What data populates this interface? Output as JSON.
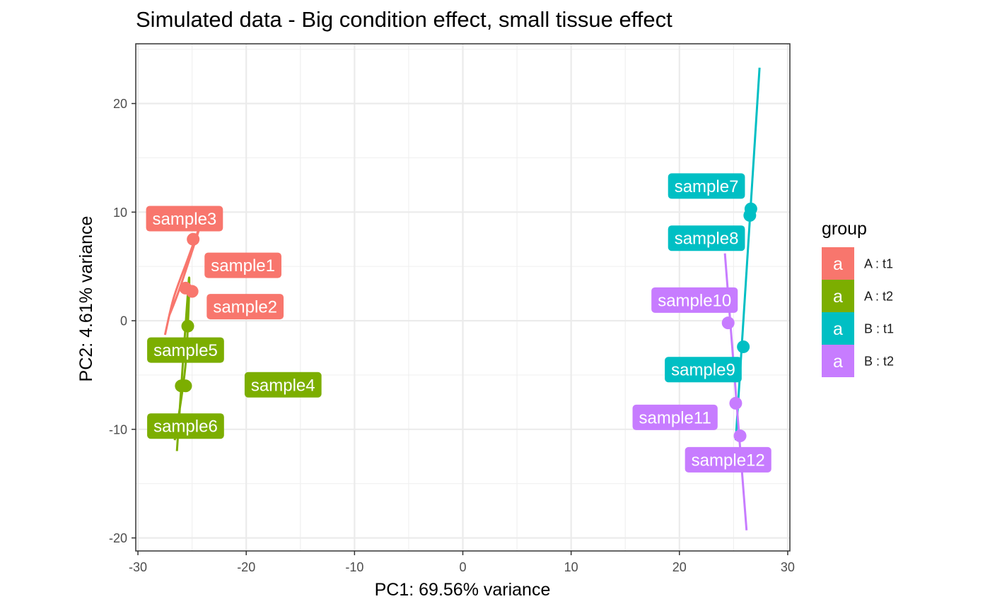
{
  "chart_data": {
    "type": "scatter",
    "title": "Simulated data - Big condition effect, small tissue effect",
    "xlabel": "PC1: 69.56% variance",
    "ylabel": "PC2: 4.61% variance",
    "xlim": [
      -30.2,
      30.2
    ],
    "ylim": [
      -21.2,
      25.5
    ],
    "x_ticks": [
      -30,
      -20,
      -10,
      0,
      10,
      20,
      30
    ],
    "y_ticks": [
      -20,
      -10,
      0,
      10,
      20
    ],
    "x_tick_labels": [
      "-30",
      "-20",
      "-10",
      "0",
      "10",
      "20",
      "30"
    ],
    "y_tick_labels": [
      "-20",
      "-10",
      "0",
      "10",
      "20"
    ],
    "grid": true,
    "legend": {
      "title": "group",
      "position": "right",
      "key_glyph": "a",
      "entries": [
        {
          "label": "A : t1",
          "color": "#F8766D"
        },
        {
          "label": "A : t2",
          "color": "#7CAE00"
        },
        {
          "label": "B : t1",
          "color": "#00BFC4"
        },
        {
          "label": "B : t2",
          "color": "#C77CFF"
        }
      ]
    },
    "series": [
      {
        "name": "A : t1",
        "color": "#F8766D",
        "points": [
          {
            "label": "sample1",
            "x": -25.6,
            "y": 3.0,
            "label_x": -20.3,
            "label_y": 5.1
          },
          {
            "label": "sample2",
            "x": -25.0,
            "y": 2.7,
            "label_x": -20.1,
            "label_y": 1.3
          },
          {
            "label": "sample3",
            "x": -24.9,
            "y": 7.5,
            "label_x": -25.7,
            "label_y": 9.4
          }
        ],
        "ellipse": [
          [
            -27.5,
            -1.3
          ],
          [
            -26.7,
            2.1
          ],
          [
            -25.5,
            5.4
          ],
          [
            -24.3,
            8.6
          ],
          [
            -26.1,
            3.1
          ],
          [
            -27.1,
            0.5
          ]
        ]
      },
      {
        "name": "A : t2",
        "color": "#7CAE00",
        "points": [
          {
            "label": "sample4",
            "x": -25.6,
            "y": -6.0,
            "label_x": -16.6,
            "label_y": -5.9
          },
          {
            "label": "sample5",
            "x": -25.4,
            "y": -0.5,
            "label_x": -25.6,
            "label_y": -2.7
          },
          {
            "label": "sample6",
            "x": -26.0,
            "y": -6.0,
            "label_x": -25.6,
            "label_y": -9.7
          }
        ],
        "ellipse": [
          [
            -26.4,
            -12.0
          ],
          [
            -25.3,
            3.8
          ],
          [
            -25.6,
            -4.0
          ],
          [
            -26.6,
            -11.0
          ]
        ]
      },
      {
        "name": "B : t1",
        "color": "#00BFC4",
        "points": [
          {
            "label": "sample7",
            "x": 26.6,
            "y": 10.3,
            "label_x": 22.5,
            "label_y": 12.4
          },
          {
            "label": "sample8",
            "x": 26.5,
            "y": 9.7,
            "label_x": 22.5,
            "label_y": 7.6
          },
          {
            "label": "sample9",
            "x": 25.9,
            "y": -2.4,
            "label_x": 22.2,
            "label_y": -4.5
          }
        ],
        "ellipse": [
          [
            25.2,
            -11.0
          ],
          [
            27.4,
            23.3
          ]
        ]
      },
      {
        "name": "B : t2",
        "color": "#C77CFF",
        "points": [
          {
            "label": "sample10",
            "x": 24.5,
            "y": -0.2,
            "label_x": 21.4,
            "label_y": 1.9
          },
          {
            "label": "sample11",
            "x": 25.2,
            "y": -7.6,
            "label_x": 19.6,
            "label_y": -8.9
          },
          {
            "label": "sample12",
            "x": 25.6,
            "y": -10.6,
            "label_x": 24.5,
            "label_y": -12.8
          }
        ],
        "ellipse": [
          [
            24.2,
            6.2
          ],
          [
            26.2,
            -19.3
          ]
        ]
      }
    ]
  }
}
